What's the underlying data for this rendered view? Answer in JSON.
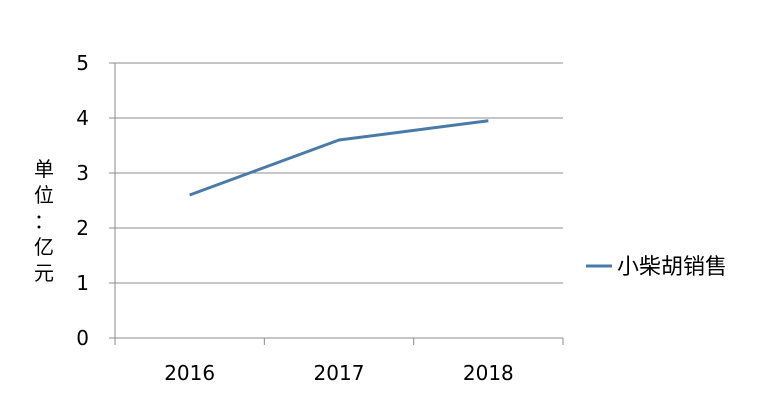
{
  "chart_data": {
    "type": "line",
    "x": [
      "2016",
      "2017",
      "2018"
    ],
    "categories": [
      "2016",
      "2017",
      "2018"
    ],
    "series": [
      {
        "name": "小柴胡销售",
        "values": [
          2.6,
          3.6,
          3.95
        ]
      }
    ],
    "ylabel": "单位：亿元",
    "ylim": [
      0,
      5
    ],
    "yticks": [
      "0",
      "1",
      "2",
      "3",
      "4",
      "5"
    ],
    "grid": true,
    "legend_position": "right",
    "series_color": "#4a7aa8"
  }
}
